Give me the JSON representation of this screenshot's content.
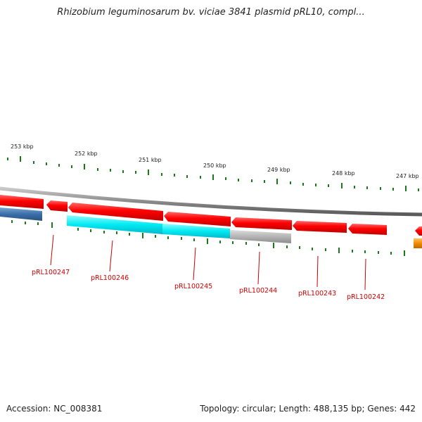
{
  "title": "Rhizobium leguminosarum bv. viciae 3841 plasmid pRL10, compl...",
  "footer": {
    "accession": "Accession: NC_008381",
    "stats": "Topology: circular; Length: 488,135 bp; Genes: 442"
  },
  "colors": {
    "forward_cds": "#ff0000",
    "backbone": "#888888",
    "tick": "#1a7a1a",
    "gene_label": "#cc0000",
    "cyan_feature": "#00e8f0",
    "grey_feature": "#b0b0b0",
    "blue_feature": "#3a6fa8",
    "orange_feature": "#f08c00"
  },
  "scale_labels": [
    "253 kbp",
    "252 kbp",
    "251 kbp",
    "250 kbp",
    "249 kbp",
    "248 kbp",
    "247 kbp"
  ],
  "genes": [
    "pRL100247",
    "pRL100246",
    "pRL100245",
    "pRL100244",
    "pRL100243",
    "pRL100242"
  ]
}
